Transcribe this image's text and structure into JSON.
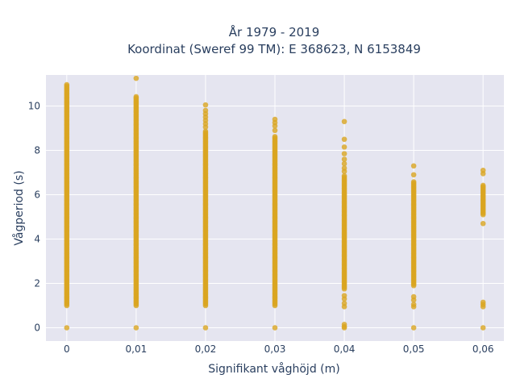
{
  "chart_data": {
    "type": "scatter",
    "title_line1": "År 1979 - 2019",
    "title_line2": "Koordinat (Sweref 99 TM): E 368623, N 6153849",
    "xlabel": "Signifikant våghöjd (m)",
    "ylabel": "Vågperiod (s)",
    "x_tick_labels": [
      "0",
      "0,01",
      "0,02",
      "0,03",
      "0,04",
      "0,05",
      "0,06"
    ],
    "x_tick_values": [
      0,
      0.01,
      0.02,
      0.03,
      0.04,
      0.05,
      0.06
    ],
    "y_tick_labels": [
      "0",
      "2",
      "4",
      "6",
      "8",
      "10"
    ],
    "y_tick_values": [
      0,
      2,
      4,
      6,
      8,
      10
    ],
    "xlim": [
      -0.003,
      0.063
    ],
    "ylim": [
      -0.6,
      11.4
    ],
    "grid": true,
    "marker_color": "#daa520",
    "plot_background": "#e5e5f0",
    "columns": [
      {
        "x": 0.0,
        "zero": true,
        "range": [
          1.0,
          11.0
        ],
        "extra": []
      },
      {
        "x": 0.01,
        "zero": true,
        "range": [
          1.0,
          10.45
        ],
        "extra": [
          11.25
        ]
      },
      {
        "x": 0.02,
        "zero": true,
        "range": [
          1.0,
          8.9
        ],
        "extra": [
          9.05,
          9.2,
          9.35,
          9.5,
          9.65,
          9.8,
          10.05
        ]
      },
      {
        "x": 0.03,
        "zero": true,
        "range": [
          1.0,
          8.65
        ],
        "extra": [
          8.9,
          9.1,
          9.25,
          9.4
        ]
      },
      {
        "x": 0.04,
        "zero": true,
        "range": [
          1.75,
          6.85
        ],
        "extra": [
          0.05,
          0.15,
          0.95,
          1.1,
          1.3,
          1.45,
          7.05,
          7.2,
          7.4,
          7.6,
          7.85,
          8.15,
          8.5,
          9.3
        ]
      },
      {
        "x": 0.05,
        "zero": true,
        "range": [
          1.9,
          6.6
        ],
        "extra": [
          0.95,
          1.05,
          1.25,
          1.4,
          6.9,
          7.3
        ]
      },
      {
        "x": 0.06,
        "zero": true,
        "range": [
          5.1,
          6.45
        ],
        "extra": [
          0.95,
          1.05,
          1.15,
          4.7,
          6.95,
          7.1
        ]
      }
    ]
  }
}
